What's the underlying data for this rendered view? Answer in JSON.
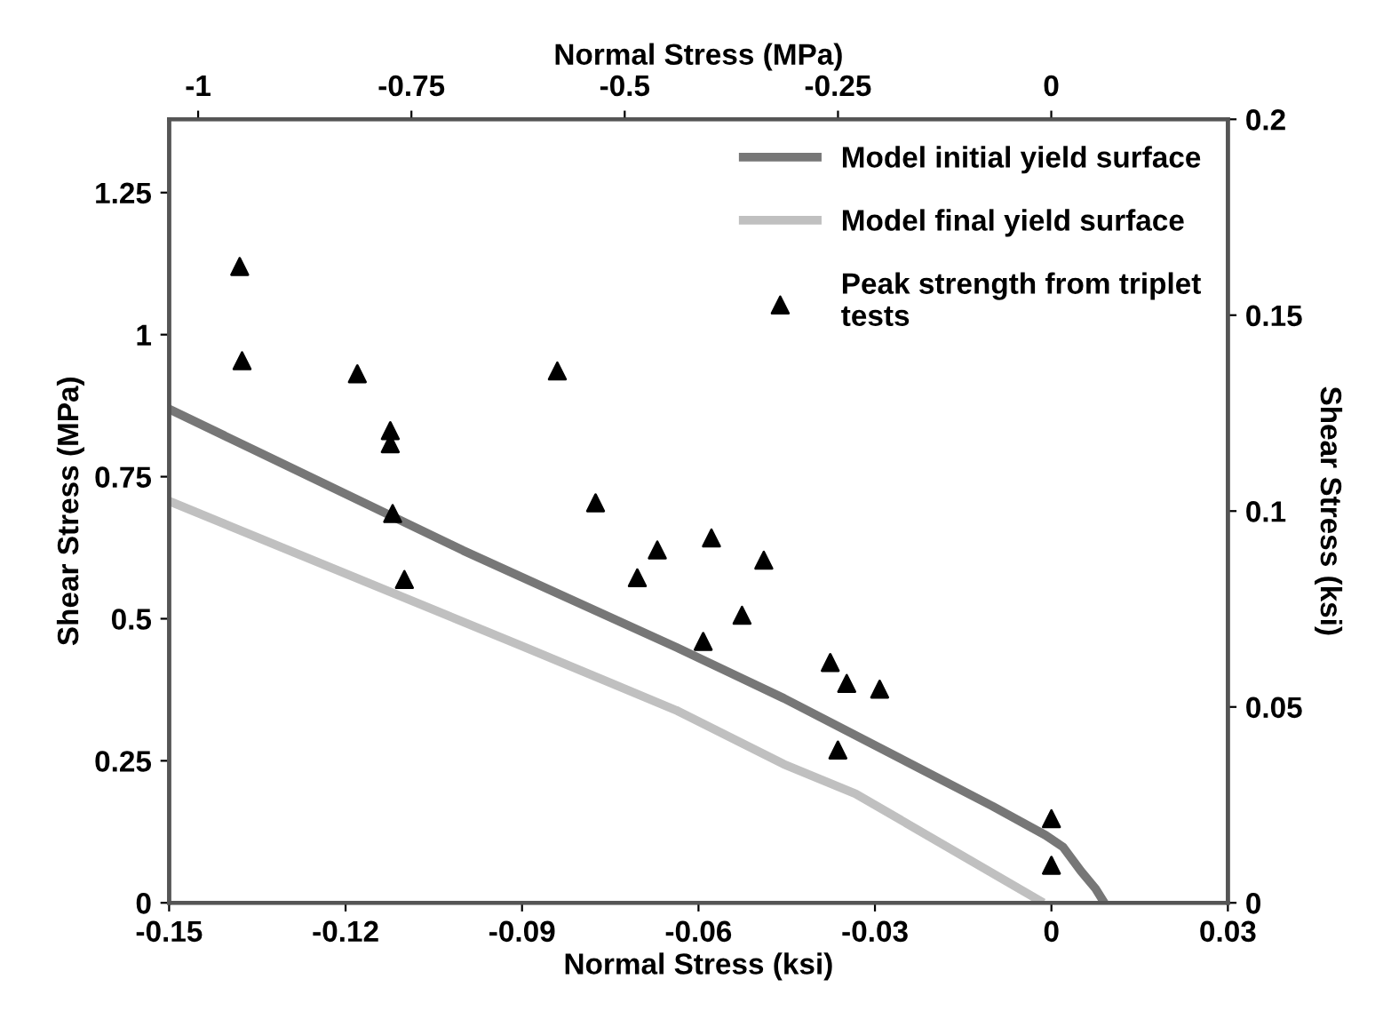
{
  "chart_data": {
    "type": "line",
    "xlabel": "Normal Stress (ksi)",
    "ylabel": "Shear Stress (MPa)",
    "y2label": "Shear Stress (ksi)",
    "x2label": "Normal Stress (MPa)",
    "xlim": [
      -0.15,
      0.03
    ],
    "xticks": [
      -0.15,
      -0.12,
      -0.09,
      -0.06,
      -0.03,
      0,
      0.03
    ],
    "ylim": [
      0,
      1.379
    ],
    "yticks": [
      0,
      0.25,
      0.5,
      0.75,
      1,
      1.25
    ],
    "y2lim": [
      0,
      0.2
    ],
    "y2ticks": [
      0,
      0.05,
      0.1,
      0.15,
      0.2
    ],
    "x2lim": [
      -1.034,
      0.207
    ],
    "x2ticks": [
      -1,
      -0.75,
      -0.5,
      -0.25,
      0
    ],
    "grid": false,
    "legend": "top right",
    "series": [
      {
        "name": "Model initial yield surface",
        "color": "#777777",
        "marker": "none",
        "line_style": "solid",
        "x": [
          -0.15,
          -0.1,
          -0.0636,
          -0.0455,
          -0.01,
          -0.001,
          0.002,
          0.005,
          0.0075,
          0.009
        ],
        "values": [
          0.869,
          0.62,
          0.449,
          0.36,
          0.17,
          0.119,
          0.098,
          0.056,
          0.025,
          0
        ]
      },
      {
        "name": "Model final yield surface",
        "color": "#c0c0c0",
        "marker": "none",
        "line_style": "solid",
        "x": [
          -0.15,
          -0.09,
          -0.0636,
          -0.0455,
          -0.0333,
          -0.002
        ],
        "values": [
          0.707,
          0.452,
          0.338,
          0.244,
          0.192,
          0.004
        ]
      },
      {
        "name": "Peak strength from triplet\ntests",
        "type": "scatter",
        "color": "#000000",
        "marker": "triangle",
        "x": [
          -0.138,
          -0.1376,
          -0.118,
          -0.1124,
          -0.1124,
          -0.112,
          -0.11,
          -0.084,
          -0.0775,
          -0.067,
          -0.0704,
          -0.0578,
          -0.0489,
          -0.0526,
          -0.0592,
          -0.0376,
          -0.0348,
          -0.0292,
          -0.0363,
          0,
          0
        ],
        "values": [
          1.12,
          0.954,
          0.931,
          0.831,
          0.808,
          0.685,
          0.569,
          0.936,
          0.704,
          0.621,
          0.572,
          0.642,
          0.603,
          0.506,
          0.46,
          0.423,
          0.386,
          0.376,
          0.269,
          0.148,
          0.066
        ]
      }
    ]
  }
}
